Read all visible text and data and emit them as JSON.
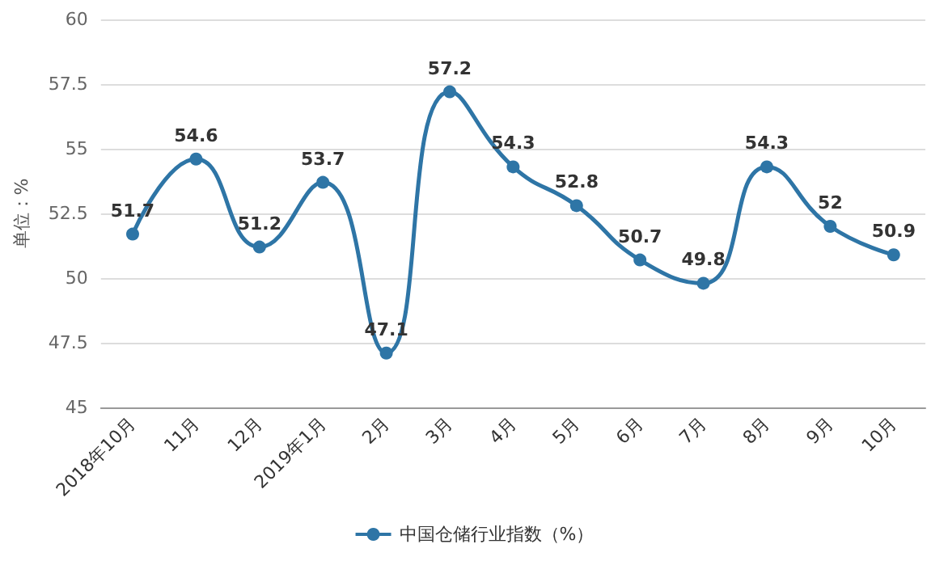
{
  "chart_data": {
    "type": "line",
    "ylabel": "单位：%",
    "categories": [
      "2018年10月",
      "11月",
      "12月",
      "2019年1月",
      "2月",
      "3月",
      "4月",
      "5月",
      "6月",
      "7月",
      "8月",
      "9月",
      "10月"
    ],
    "series": [
      {
        "name": "中国仓储行业指数（%）",
        "color": "#2e75a6",
        "values": [
          51.7,
          54.6,
          51.2,
          53.7,
          47.1,
          57.2,
          54.3,
          52.8,
          50.7,
          49.8,
          54.3,
          52,
          50.9
        ]
      }
    ],
    "ylim": [
      45,
      60
    ],
    "yticks": [
      45,
      47.5,
      50,
      52.5,
      55,
      57.5,
      60
    ],
    "grid": "y",
    "legend": "bottom",
    "marker": "circle",
    "data_labels": true
  }
}
